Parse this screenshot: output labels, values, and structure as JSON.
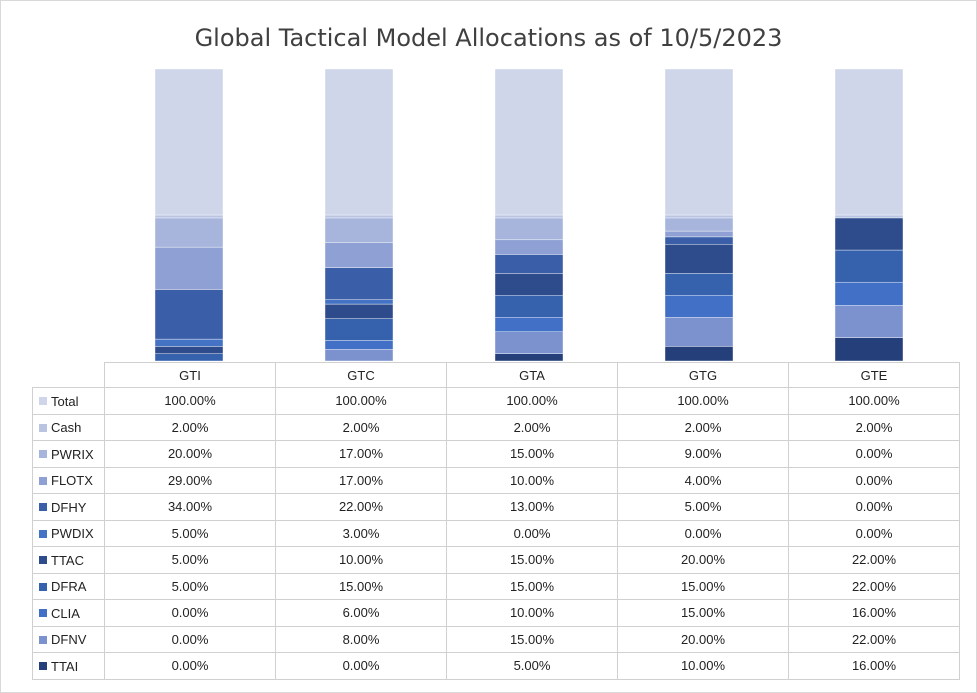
{
  "chart_data": {
    "type": "bar",
    "stacked": true,
    "title": "Global Tactical Model Allocations as of 10/5/2023",
    "categories": [
      "GTI",
      "GTC",
      "GTA",
      "GTG",
      "GTE"
    ],
    "ylim": [
      0,
      200
    ],
    "legend": "data table below chart",
    "series": [
      {
        "name": "Total",
        "color": "#cfd6ea",
        "values": [
          100,
          100,
          100,
          100,
          100
        ],
        "labels": [
          "100.00%",
          "100.00%",
          "100.00%",
          "100.00%",
          "100.00%"
        ]
      },
      {
        "name": "Cash",
        "color": "#b9c4e2",
        "values": [
          2,
          2,
          2,
          2,
          2
        ],
        "labels": [
          "2.00%",
          "2.00%",
          "2.00%",
          "2.00%",
          "2.00%"
        ]
      },
      {
        "name": "PWRIX",
        "color": "#a7b5dc",
        "values": [
          20,
          17,
          15,
          9,
          0
        ],
        "labels": [
          "20.00%",
          "17.00%",
          "15.00%",
          "9.00%",
          "0.00%"
        ]
      },
      {
        "name": "FLOTX",
        "color": "#8fa1d4",
        "values": [
          29,
          17,
          10,
          4,
          0
        ],
        "labels": [
          "29.00%",
          "17.00%",
          "10.00%",
          "4.00%",
          "0.00%"
        ]
      },
      {
        "name": "DFHY",
        "color": "#3a5ea8",
        "values": [
          34,
          22,
          13,
          5,
          0
        ],
        "labels": [
          "34.00%",
          "22.00%",
          "13.00%",
          "5.00%",
          "0.00%"
        ]
      },
      {
        "name": "PWDIX",
        "color": "#4472c4",
        "values": [
          5,
          3,
          0,
          0,
          0
        ],
        "labels": [
          "5.00%",
          "3.00%",
          "0.00%",
          "0.00%",
          "0.00%"
        ]
      },
      {
        "name": "TTAC",
        "color": "#2e4c8c",
        "values": [
          5,
          10,
          15,
          20,
          22
        ],
        "labels": [
          "5.00%",
          "10.00%",
          "15.00%",
          "20.00%",
          "22.00%"
        ]
      },
      {
        "name": "DFRA",
        "color": "#3561ad",
        "values": [
          5,
          15,
          15,
          15,
          22
        ],
        "labels": [
          "5.00%",
          "15.00%",
          "15.00%",
          "15.00%",
          "22.00%"
        ]
      },
      {
        "name": "CLIA",
        "color": "#4270c6",
        "values": [
          0,
          6,
          10,
          15,
          16
        ],
        "labels": [
          "0.00%",
          "6.00%",
          "10.00%",
          "15.00%",
          "16.00%"
        ]
      },
      {
        "name": "DFNV",
        "color": "#7b92cf",
        "values": [
          0,
          8,
          15,
          20,
          22
        ],
        "labels": [
          "0.00%",
          "8.00%",
          "15.00%",
          "20.00%",
          "22.00%"
        ]
      },
      {
        "name": "TTAI",
        "color": "#253f7a",
        "values": [
          0,
          0,
          5,
          10,
          16
        ],
        "labels": [
          "0.00%",
          "0.00%",
          "5.00%",
          "10.00%",
          "16.00%"
        ]
      }
    ]
  }
}
